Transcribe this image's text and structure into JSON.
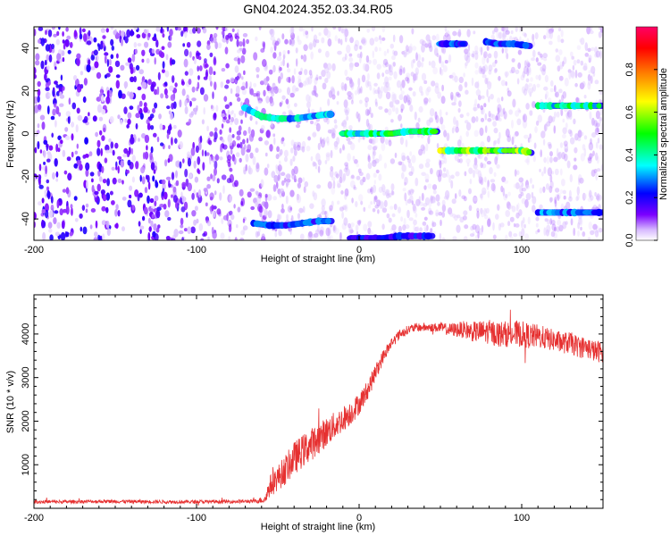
{
  "title": "GN04.2024.352.03.34.R05",
  "chart_data": [
    {
      "type": "heatmap",
      "xlabel": "Height of straight line (km)",
      "ylabel": "Frequency (Hz)",
      "xlim": [
        -200,
        150
      ],
      "ylim": [
        -50,
        50
      ],
      "x_ticks": [
        -200,
        -100,
        0,
        100
      ],
      "y_ticks": [
        -40,
        -20,
        0,
        20,
        40
      ],
      "colorbar": {
        "label": "Normalized spectral amplitude",
        "range": [
          0.0,
          1.0
        ],
        "ticks": [
          0.0,
          0.2,
          0.4,
          0.6,
          0.8
        ],
        "tick_labels": [
          "0.0",
          "0.2",
          "0.4",
          "0.6",
          "0.8"
        ],
        "colors": [
          "#ffffff",
          "#d6b8ff",
          "#7b00ff",
          "#0000ff",
          "#00ffff",
          "#00ff00",
          "#ffff00",
          "#ff8000",
          "#ff0000",
          "#ff0066"
        ]
      },
      "tracks": [
        {
          "x": [
            -70,
            -60,
            -50,
            -40,
            -30,
            -20,
            -17
          ],
          "y": [
            12,
            8,
            7,
            7,
            8,
            9,
            9
          ],
          "amplitude": 0.45
        },
        {
          "x": [
            -65,
            -55,
            -45,
            -35,
            -25,
            -17
          ],
          "y": [
            -42,
            -43,
            -43,
            -42,
            -41,
            -41
          ],
          "amplitude": 0.3
        },
        {
          "x": [
            -10,
            0,
            10,
            20,
            30,
            40,
            48
          ],
          "y": [
            0,
            0,
            0,
            0,
            1,
            1,
            1
          ],
          "amplitude": 0.55
        },
        {
          "x": [
            -5,
            5,
            15,
            25,
            35,
            45
          ],
          "y": [
            -49,
            -49,
            -49,
            -48,
            -48,
            -48
          ],
          "amplitude": 0.25
        },
        {
          "x": [
            50,
            60,
            70,
            80,
            90,
            100,
            106
          ],
          "y": [
            -8,
            -8,
            -8,
            -8,
            -8,
            -8,
            -9
          ],
          "amplitude": 0.65
        },
        {
          "x": [
            50,
            55,
            60,
            65
          ],
          "y": [
            42,
            42,
            42,
            42
          ],
          "amplitude": 0.3
        },
        {
          "x": [
            78,
            85,
            95,
            105
          ],
          "y": [
            43,
            42,
            42,
            41
          ],
          "amplitude": 0.3
        },
        {
          "x": [
            110,
            120,
            130,
            140,
            150
          ],
          "y": [
            13,
            13,
            13,
            13,
            13
          ],
          "amplitude": 0.5
        },
        {
          "x": [
            110,
            120,
            130,
            140,
            150
          ],
          "y": [
            -37,
            -37,
            -37,
            -37,
            -37
          ],
          "amplitude": 0.35
        }
      ]
    },
    {
      "type": "line",
      "xlabel": "Height of straight line (km)",
      "ylabel": "SNR (10 * v/v)",
      "xlim": [
        -200,
        150
      ],
      "ylim": [
        0,
        4900
      ],
      "x_ticks": [
        -200,
        -100,
        0,
        100
      ],
      "y_ticks": [
        1000,
        2000,
        3000,
        4000
      ],
      "color": "#e63030",
      "x": [
        -200,
        -180,
        -160,
        -140,
        -120,
        -100,
        -80,
        -65,
        -58,
        -55,
        -50,
        -45,
        -40,
        -35,
        -30,
        -25,
        -20,
        -15,
        -10,
        -5,
        0,
        5,
        10,
        15,
        20,
        25,
        30,
        35,
        40,
        45,
        50,
        55,
        60,
        65,
        70,
        75,
        80,
        85,
        90,
        95,
        100,
        105,
        110,
        115,
        120,
        125,
        130,
        135,
        140,
        145,
        150
      ],
      "y": [
        150,
        150,
        160,
        155,
        150,
        150,
        155,
        160,
        200,
        500,
        700,
        900,
        1150,
        1300,
        1450,
        1600,
        1750,
        1900,
        2050,
        2200,
        2400,
        2700,
        3100,
        3500,
        3800,
        4000,
        4100,
        4150,
        4150,
        4150,
        4150,
        4100,
        4100,
        4100,
        4050,
        4050,
        4050,
        4000,
        4000,
        4000,
        4000,
        3950,
        3950,
        3900,
        3850,
        3800,
        3800,
        3700,
        3700,
        3600,
        3600
      ],
      "noise": [
        40,
        40,
        40,
        40,
        40,
        40,
        40,
        40,
        90,
        250,
        300,
        350,
        380,
        380,
        380,
        360,
        340,
        320,
        300,
        280,
        250,
        230,
        200,
        160,
        130,
        110,
        100,
        100,
        100,
        100,
        120,
        140,
        170,
        200,
        230,
        260,
        280,
        300,
        300,
        300,
        300,
        290,
        280,
        260,
        250,
        250,
        250,
        250,
        250,
        250,
        250
      ]
    }
  ]
}
